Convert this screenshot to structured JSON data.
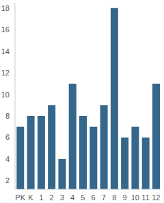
{
  "chart_data": {
    "type": "bar",
    "categories": [
      "PK",
      "K",
      "1",
      "2",
      "3",
      "4",
      "5",
      "6",
      "7",
      "8",
      "9",
      "10",
      "11",
      "12"
    ],
    "values": [
      7,
      8,
      8,
      9,
      4,
      11,
      8,
      7,
      9,
      18,
      6,
      7,
      6,
      11
    ],
    "color": "#35668c",
    "ylim": [
      1.2,
      18.5
    ],
    "yticks": [
      2,
      4,
      6,
      8,
      10,
      12,
      14,
      16,
      18
    ],
    "grid": false
  }
}
